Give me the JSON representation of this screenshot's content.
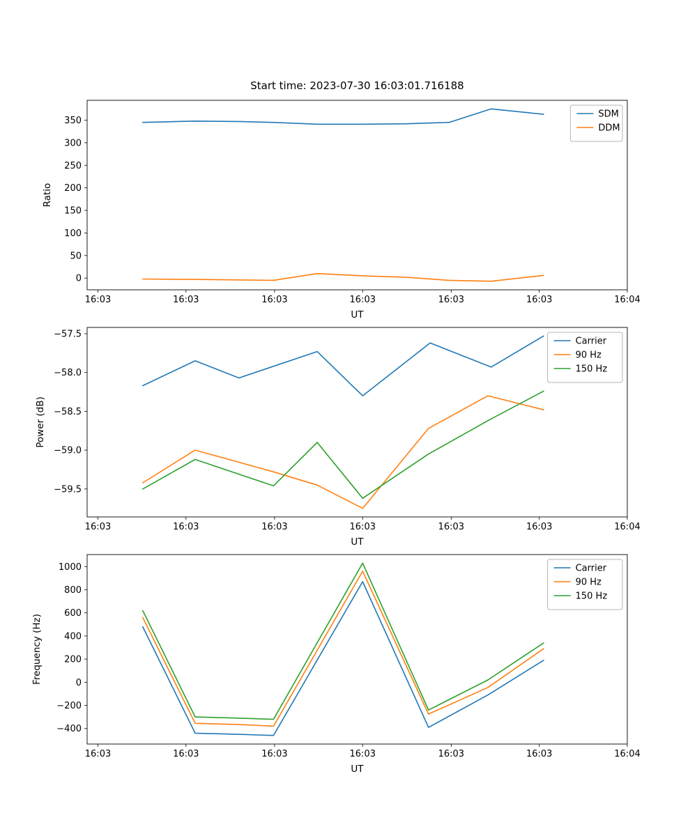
{
  "figure_title": "Start time: 2023-07-30 16:03:01.716188",
  "colors": {
    "blue": "#1f77b4",
    "orange": "#ff7f0e",
    "green": "#2ca02c"
  },
  "chart_data": [
    {
      "name": "ratio",
      "type": "line",
      "title": "Start time: 2023-07-30 16:03:01.716188",
      "xlabel": "UT",
      "ylabel": "Ratio",
      "ylim": [
        -26,
        394
      ],
      "yticks": [
        0,
        50,
        100,
        150,
        200,
        250,
        300,
        350
      ],
      "ytick_labels": [
        "0",
        "50",
        "100",
        "150",
        "200",
        "250",
        "300",
        "350"
      ],
      "xtick_pos": [
        0.02,
        0.183,
        0.347,
        0.51,
        0.674,
        0.837,
        1.0
      ],
      "xtick_labels": [
        "16:03",
        "16:03",
        "16:03",
        "16:03",
        "16:03",
        "16:03",
        "16:04"
      ],
      "legend_loc": "upper right",
      "grid": false,
      "series": [
        {
          "name": "SDM",
          "color": "#1f77b4",
          "x": [
            0.103,
            0.2,
            0.281,
            0.345,
            0.426,
            0.51,
            0.59,
            0.67,
            0.748,
            0.845
          ],
          "y": [
            345,
            348,
            347,
            345,
            341,
            341,
            342,
            345,
            375,
            363
          ]
        },
        {
          "name": "DDM",
          "color": "#ff7f0e",
          "x": [
            0.103,
            0.2,
            0.281,
            0.345,
            0.426,
            0.51,
            0.59,
            0.67,
            0.748,
            0.845
          ],
          "y": [
            -2,
            -3,
            -4,
            -5,
            10,
            5,
            2,
            -5,
            -7,
            6
          ]
        }
      ]
    },
    {
      "name": "power",
      "type": "line",
      "title": "",
      "xlabel": "UT",
      "ylabel": "Power (dB)",
      "ylim": [
        -59.86,
        -57.42
      ],
      "yticks": [
        -57.5,
        -58.0,
        -58.5,
        -59.0,
        -59.5
      ],
      "ytick_labels": [
        "−57.5",
        "−58.0",
        "−58.5",
        "−59.0",
        "−59.5"
      ],
      "xtick_pos": [
        0.02,
        0.183,
        0.347,
        0.51,
        0.674,
        0.837,
        1.0
      ],
      "xtick_labels": [
        "16:03",
        "16:03",
        "16:03",
        "16:03",
        "16:03",
        "16:03",
        "16:04"
      ],
      "legend_loc": "upper right",
      "grid": false,
      "series": [
        {
          "name": "Carrier",
          "color": "#1f77b4",
          "x": [
            0.103,
            0.2,
            0.281,
            0.426,
            0.51,
            0.635,
            0.748,
            0.845
          ],
          "y": [
            -58.17,
            -57.85,
            -58.07,
            -57.73,
            -58.3,
            -57.62,
            -57.93,
            -57.53
          ]
        },
        {
          "name": "90 Hz",
          "color": "#ff7f0e",
          "x": [
            0.103,
            0.2,
            0.345,
            0.426,
            0.51,
            0.632,
            0.742,
            0.845
          ],
          "y": [
            -59.42,
            -59.0,
            -59.28,
            -59.45,
            -59.75,
            -58.72,
            -58.3,
            -58.48
          ]
        },
        {
          "name": "150 Hz",
          "color": "#2ca02c",
          "x": [
            0.103,
            0.2,
            0.345,
            0.426,
            0.51,
            0.632,
            0.742,
            0.845
          ],
          "y": [
            -59.5,
            -59.12,
            -59.46,
            -58.9,
            -59.62,
            -59.05,
            -58.62,
            -58.24
          ]
        }
      ]
    },
    {
      "name": "frequency",
      "type": "line",
      "title": "",
      "xlabel": "UT",
      "ylabel": "Frequency (Hz)",
      "ylim": [
        -534,
        1104
      ],
      "yticks": [
        1000,
        800,
        600,
        400,
        200,
        0,
        -200,
        -400
      ],
      "ytick_labels": [
        "1000",
        "800",
        "600",
        "400",
        "200",
        "0",
        "−200",
        "−400"
      ],
      "xtick_pos": [
        0.02,
        0.183,
        0.347,
        0.51,
        0.674,
        0.837,
        1.0
      ],
      "xtick_labels": [
        "16:03",
        "16:03",
        "16:03",
        "16:03",
        "16:03",
        "16:03",
        "16:04"
      ],
      "legend_loc": "upper right",
      "grid": false,
      "series": [
        {
          "name": "Carrier",
          "color": "#1f77b4",
          "x": [
            0.103,
            0.2,
            0.281,
            0.345,
            0.51,
            0.632,
            0.742,
            0.845
          ],
          "y": [
            480,
            -440,
            -450,
            -460,
            870,
            -390,
            -110,
            190
          ]
        },
        {
          "name": "90 Hz",
          "color": "#ff7f0e",
          "x": [
            0.103,
            0.2,
            0.281,
            0.345,
            0.51,
            0.632,
            0.742,
            0.845
          ],
          "y": [
            560,
            -355,
            -365,
            -380,
            960,
            -275,
            -45,
            290
          ]
        },
        {
          "name": "150 Hz",
          "color": "#2ca02c",
          "x": [
            0.103,
            0.2,
            0.281,
            0.345,
            0.51,
            0.632,
            0.742,
            0.845
          ],
          "y": [
            620,
            -300,
            -310,
            -320,
            1030,
            -240,
            20,
            340
          ]
        }
      ]
    }
  ]
}
